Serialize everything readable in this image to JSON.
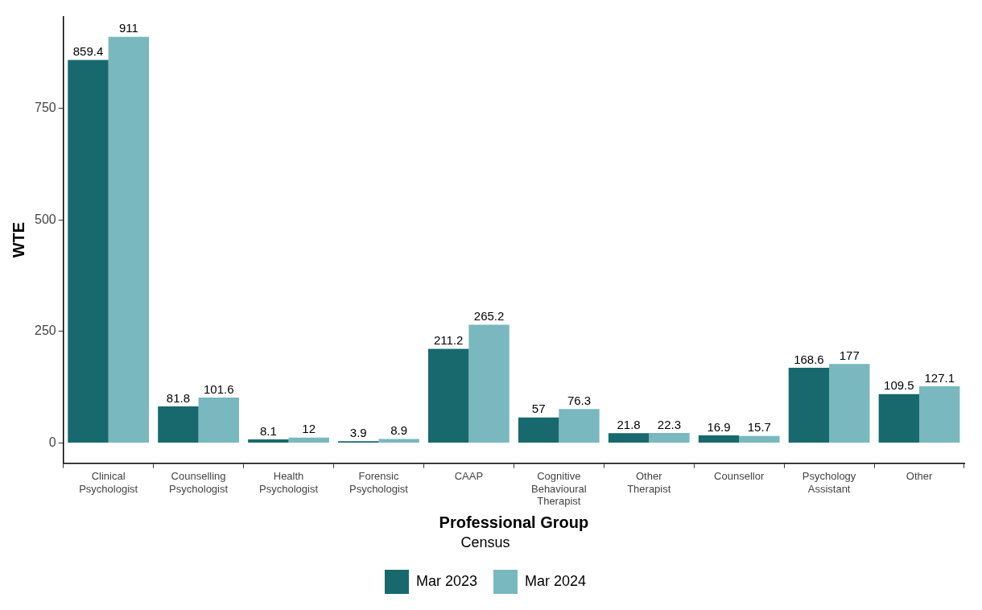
{
  "chart_data": {
    "type": "bar",
    "xlabel": "Professional Group",
    "ylabel": "WTE",
    "legend_title": "Census",
    "categories": [
      "Clinical Psychologist",
      "Counselling Psychologist",
      "Health Psychologist",
      "Forensic Psychologist",
      "CAAP",
      "Cognitive Behavioural Therapist",
      "Other Therapist",
      "Counsellor",
      "Psychology Assistant",
      "Other"
    ],
    "series": [
      {
        "name": "Mar 2023",
        "color": "#17696e",
        "values": [
          859.4,
          81.8,
          8.1,
          3.9,
          211.2,
          57,
          21.8,
          16.9,
          168.6,
          109.5
        ]
      },
      {
        "name": "Mar 2024",
        "color": "#78b8be",
        "values": [
          911,
          101.6,
          12,
          8.9,
          265.2,
          76.3,
          22.3,
          15.7,
          177,
          127.1
        ]
      }
    ],
    "ylim": [
      -45.5,
      956.5
    ],
    "yticks": [
      0,
      250,
      500,
      750
    ],
    "grid": false,
    "legend": "bottom",
    "data_labels": true
  }
}
